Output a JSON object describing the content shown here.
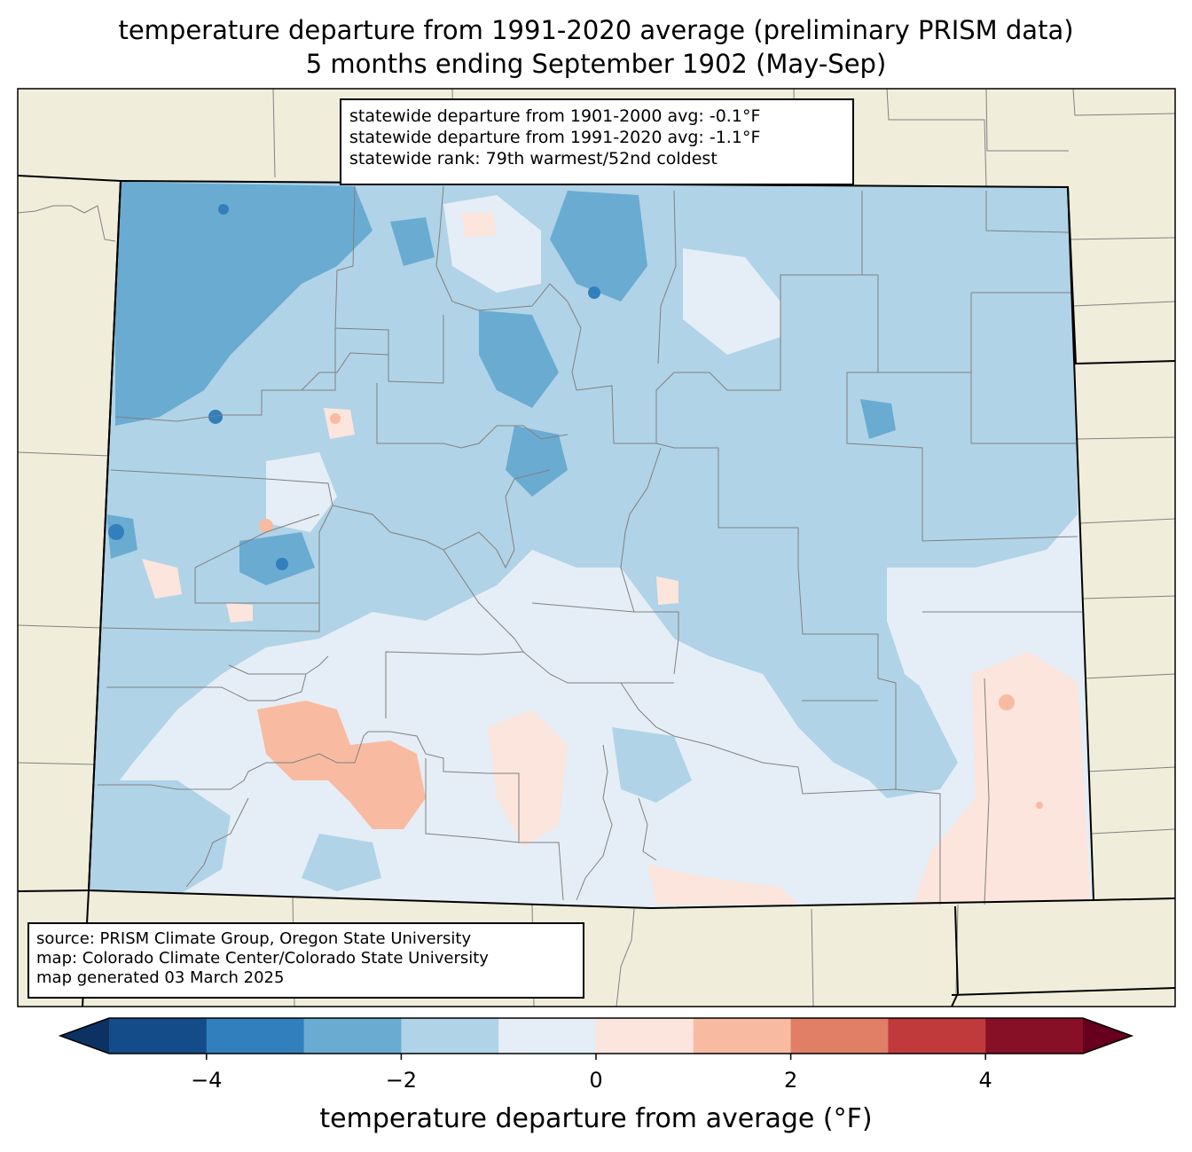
{
  "title": {
    "line1": "temperature departure from 1991-2020 average (preliminary PRISM data)",
    "line2": "5 months ending September 1902 (May-Sep)"
  },
  "stats": {
    "line1": "statewide departure from 1901-2000 avg: -0.1°F",
    "line2": "statewide departure from 1991-2020 avg: -1.1°F",
    "line3": "statewide rank: 79th warmest/52nd coldest"
  },
  "source": {
    "line1": "source: PRISM Climate Group, Oregon State University",
    "line2": "map: Colorado Climate Center/Colorado State University",
    "line3": "map generated 03 March 2025"
  },
  "colorbar": {
    "label": "temperature departure from average (°F)",
    "min": -5,
    "max": 5,
    "ticks": [
      {
        "value": -4,
        "label": "−4"
      },
      {
        "value": -2,
        "label": "−2"
      },
      {
        "value": 0,
        "label": "0"
      },
      {
        "value": 2,
        "label": "2"
      },
      {
        "value": 4,
        "label": "4"
      }
    ],
    "bins": [
      {
        "from": -5,
        "to": -4,
        "color": "#144c8a"
      },
      {
        "from": -4,
        "to": -3,
        "color": "#3180bd"
      },
      {
        "from": -3,
        "to": -2,
        "color": "#6aabd2"
      },
      {
        "from": -2,
        "to": -1,
        "color": "#b0d3e7"
      },
      {
        "from": -1,
        "to": 0,
        "color": "#e5eef6"
      },
      {
        "from": 0,
        "to": 1,
        "color": "#fbe5dc"
      },
      {
        "from": 1,
        "to": 2,
        "color": "#f8bba1"
      },
      {
        "from": 2,
        "to": 3,
        "color": "#e07e66"
      },
      {
        "from": 3,
        "to": 4,
        "color": "#c13a3b"
      },
      {
        "from": 4,
        "to": 5,
        "color": "#870f26"
      }
    ],
    "under_color": "#0b3263",
    "over_color": "#66001c"
  },
  "colors": {
    "land": "#f0eedb",
    "state_border": "#000000",
    "county_border": "#808080"
  }
}
